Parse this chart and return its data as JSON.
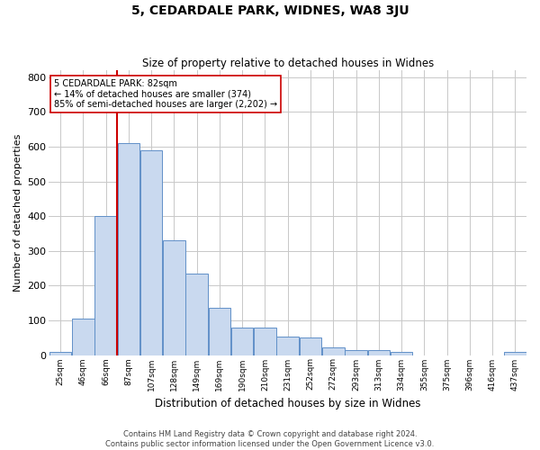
{
  "title": "5, CEDARDALE PARK, WIDNES, WA8 3JU",
  "subtitle": "Size of property relative to detached houses in Widnes",
  "xlabel": "Distribution of detached houses by size in Widnes",
  "ylabel": "Number of detached properties",
  "bin_labels": [
    "25sqm",
    "46sqm",
    "66sqm",
    "87sqm",
    "107sqm",
    "128sqm",
    "149sqm",
    "169sqm",
    "190sqm",
    "210sqm",
    "231sqm",
    "252sqm",
    "272sqm",
    "293sqm",
    "313sqm",
    "334sqm",
    "355sqm",
    "375sqm",
    "396sqm",
    "416sqm",
    "437sqm"
  ],
  "bar_heights": [
    8,
    105,
    400,
    610,
    590,
    330,
    235,
    135,
    78,
    78,
    52,
    50,
    22,
    15,
    15,
    8,
    0,
    0,
    0,
    0,
    8
  ],
  "bar_color": "#c9d9ef",
  "bar_edge_color": "#6090c8",
  "vline_x": 2.5,
  "vline_color": "#cc0000",
  "annotation_text": "5 CEDARDALE PARK: 82sqm\n← 14% of detached houses are smaller (374)\n85% of semi-detached houses are larger (2,202) →",
  "annotation_box_color": "#ffffff",
  "annotation_box_edge": "#cc0000",
  "ylim": [
    0,
    820
  ],
  "yticks": [
    0,
    100,
    200,
    300,
    400,
    500,
    600,
    700,
    800
  ],
  "footer": "Contains HM Land Registry data © Crown copyright and database right 2024.\nContains public sector information licensed under the Open Government Licence v3.0.",
  "bg_color": "#ffffff",
  "grid_color": "#c8c8c8",
  "fig_width": 6.0,
  "fig_height": 5.0,
  "dpi": 100
}
